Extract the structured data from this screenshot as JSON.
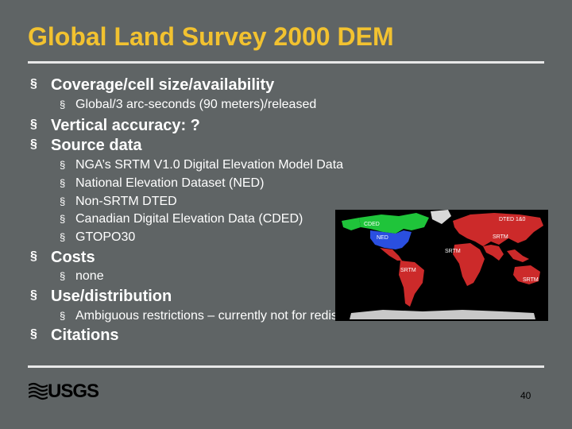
{
  "slide": {
    "title": "Global Land Survey 2000 DEM",
    "bullet_mark": "§",
    "bullets": [
      {
        "text": "Coverage/cell size/availability",
        "sub": [
          "Global/3 arc-seconds (90 meters)/released"
        ]
      },
      {
        "text": "Vertical accuracy: ?",
        "sub": []
      },
      {
        "text": "Source data",
        "sub": [
          "NGA’s SRTM V1.0 Digital Elevation Model Data",
          "National Elevation Dataset (NED)",
          "Non-SRTM DTED",
          "Canadian Digital Elevation Data (CDED)",
          "GTOPO30"
        ]
      },
      {
        "text": "Costs",
        "sub": [
          "none"
        ]
      },
      {
        "text": "Use/distribution",
        "sub": [
          "Ambiguous restrictions – currently not for redistribution"
        ]
      },
      {
        "text": "Citations",
        "sub": []
      }
    ],
    "page_number": "40"
  },
  "map": {
    "labels": {
      "cded": "CDED",
      "dted": "DTED 1&0",
      "ned": "NED",
      "srtm": "SRTM"
    }
  },
  "logo": {
    "text": "USGS"
  },
  "colors": {
    "background": "#5f6465",
    "title": "#f2c230",
    "text": "#ffffff",
    "rule": "#e8e8e8"
  }
}
